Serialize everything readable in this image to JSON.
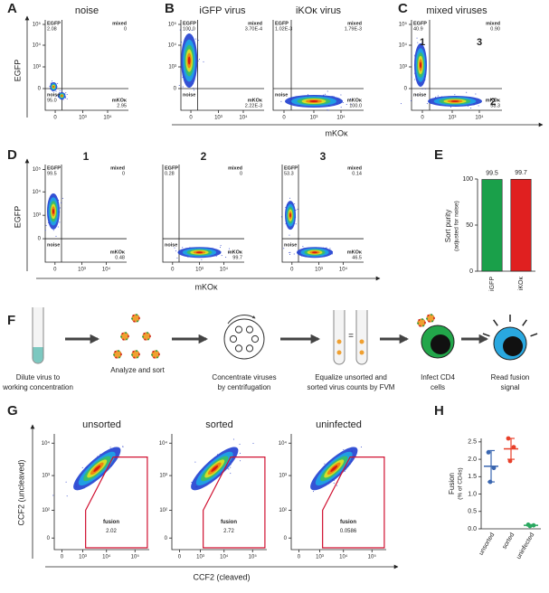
{
  "panel_letters": [
    "A",
    "B",
    "C",
    "D",
    "E",
    "F",
    "G",
    "H"
  ],
  "quadrant_labels": {
    "egfp": "EGFP",
    "mixed": "mixed",
    "noise": "noise",
    "mko": "mKOκ"
  },
  "row1": {
    "y_label": "EGFP",
    "x_label": "mKOκ",
    "y_ticks": [
      "10⁵",
      "10⁴",
      "10³",
      "0"
    ],
    "x_ticks": [
      "0",
      "10³",
      "10⁴"
    ],
    "plots": [
      {
        "title": "noise",
        "egfp": "2.08",
        "mixed": "0",
        "noise": "95.0",
        "mko": "2.95"
      },
      {
        "title": "iGFP virus",
        "egfp": "100.0",
        "mixed": "3.70E-4",
        "mko": "2.22E-3"
      },
      {
        "title": "iKOκ virus",
        "egfp": "1.02E-3",
        "mixed": "1.79E-3",
        "mko": "100.0"
      },
      {
        "title": "mixed viruses",
        "egfp": "40.9",
        "mixed": "0.90",
        "mko": "58.3",
        "gate_labels": [
          {
            "text": "1",
            "color": "#1aa04a"
          },
          {
            "text": "3",
            "color": "#1a78c0"
          },
          {
            "text": "2",
            "color": "#e02020"
          }
        ]
      }
    ]
  },
  "row2": {
    "y_label": "EGFP",
    "x_label": "mKOκ",
    "y_ticks": [
      "10⁵",
      "10⁴",
      "10³",
      "0"
    ],
    "x_ticks": [
      "0",
      "10³",
      "10⁴"
    ],
    "plots": [
      {
        "title": "1",
        "color": "#1aa04a",
        "egfp": "99.5",
        "mixed": "0",
        "mko": "0.48"
      },
      {
        "title": "2",
        "color": "#e02020",
        "egfp": "0.28",
        "mixed": "0",
        "mko": "99.7"
      },
      {
        "title": "3",
        "color": "#1a78c0",
        "egfp": "53.3",
        "mixed": "0.14",
        "mko": "46.5"
      }
    ]
  },
  "panel_E": {
    "type": "bar",
    "y_label": [
      "Sort purity",
      "(adjusted for noise)"
    ],
    "categories": [
      "iGFP",
      "iKOκ"
    ],
    "values": [
      99.5,
      99.7
    ],
    "colors": [
      "#1aa04a",
      "#e02020"
    ],
    "ylim": [
      0,
      100
    ],
    "yticks": [
      0,
      50,
      100
    ]
  },
  "panel_F": {
    "steps": [
      [
        "Dilute virus to",
        "working concentration"
      ],
      [
        "Analyze and sort"
      ],
      [
        "Concentrate viruses",
        "by centrifugation"
      ],
      [
        "Equalize unsorted and",
        "sorted virus counts by FVM"
      ],
      [
        "Infect CD4",
        "cells"
      ],
      [
        "Read fusion",
        "signal"
      ]
    ]
  },
  "panel_G": {
    "y_label": "CCF2 (uncleaved)",
    "x_label": "CCF2 (cleaved)",
    "gate_label": "fusion",
    "y_ticks": [
      "10⁴",
      "10³",
      "10²",
      "0"
    ],
    "x_ticks": [
      "0",
      "10³",
      "10⁴",
      "10⁵"
    ],
    "plots": [
      {
        "title": "unsorted",
        "gate_value": "2.02"
      },
      {
        "title": "sorted",
        "gate_value": "2.72"
      },
      {
        "title": "uninfected",
        "gate_value": "0.0586"
      }
    ]
  },
  "panel_H": {
    "type": "dot",
    "y_label": [
      "Fusion",
      "(% of CD4s)"
    ],
    "ylim": [
      0,
      2.6
    ],
    "yticks": [
      {
        "value": 0,
        "label": "0.0"
      },
      {
        "value": 0.5,
        "label": "0.5"
      },
      {
        "value": 1,
        "label": "1.0"
      },
      {
        "value": 1.5,
        "label": "1.5"
      },
      {
        "value": 2,
        "label": "2.0"
      },
      {
        "value": 2.5,
        "label": "2.5"
      }
    ],
    "groups": [
      {
        "name": "unsorted",
        "color": "#3a66b0",
        "values": [
          2.2,
          1.75,
          1.35
        ],
        "mean": 1.8,
        "sd": 0.45
      },
      {
        "name": "sorted",
        "color": "#e8402a",
        "values": [
          2.6,
          2.35,
          1.95
        ],
        "mean": 2.3,
        "sd": 0.3
      },
      {
        "name": "uninfected",
        "color": "#2aa860",
        "values": [
          0.12,
          0.1,
          0.08
        ],
        "mean": 0.1,
        "sd": 0.02
      }
    ]
  }
}
